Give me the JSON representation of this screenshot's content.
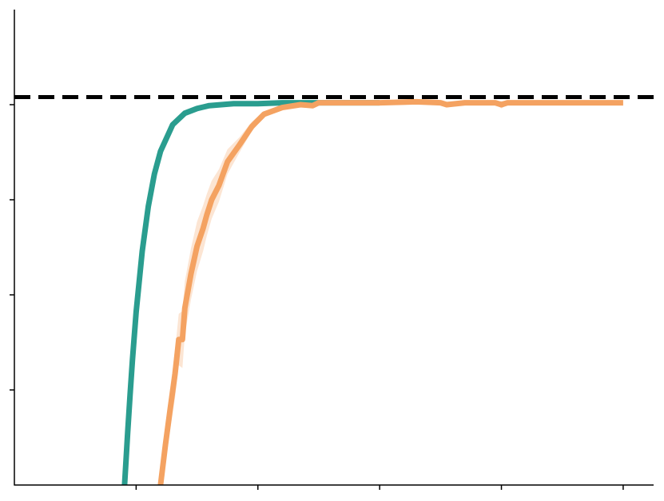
{
  "chart_data": {
    "type": "line",
    "title": "",
    "xlabel": "",
    "ylabel": "",
    "xlim": [
      0,
      5.25
    ],
    "ylim": [
      0,
      5
    ],
    "xticks": [
      1,
      2,
      3,
      4,
      5
    ],
    "yticks": [
      1,
      2,
      3,
      4
    ],
    "grid": false,
    "legend": "none",
    "reference_line": {
      "y": 4.08,
      "style": "dashed",
      "color": "#000000"
    },
    "series": [
      {
        "color": "#2a9d8f",
        "band": false,
        "x": [
          0.905,
          0.93,
          0.95,
          0.97,
          1.0,
          1.05,
          1.1,
          1.15,
          1.2,
          1.3,
          1.4,
          1.5,
          1.6,
          1.7,
          1.8,
          2.0,
          2.2,
          2.5,
          2.8,
          3.0
        ],
        "y": [
          0.0,
          0.54,
          0.95,
          1.32,
          1.82,
          2.46,
          2.93,
          3.27,
          3.51,
          3.79,
          3.91,
          3.96,
          3.99,
          4.0,
          4.01,
          4.01,
          4.02,
          4.02,
          4.02,
          4.02
        ]
      },
      {
        "color": "#f4a261",
        "band": true,
        "x": [
          1.2,
          1.24,
          1.28,
          1.32,
          1.35,
          1.38,
          1.4,
          1.45,
          1.5,
          1.55,
          1.58,
          1.62,
          1.68,
          1.75,
          1.85,
          1.95,
          2.05,
          2.2,
          2.35,
          2.45,
          2.5,
          2.7,
          3.0,
          3.3,
          3.5,
          3.55,
          3.7,
          3.95,
          4.0,
          4.05,
          4.5,
          5.0
        ],
        "y": [
          0.0,
          0.42,
          0.8,
          1.17,
          1.53,
          1.53,
          1.86,
          2.22,
          2.51,
          2.7,
          2.84,
          3.0,
          3.15,
          3.4,
          3.58,
          3.77,
          3.9,
          3.97,
          4.0,
          3.99,
          4.02,
          4.02,
          4.02,
          4.03,
          4.02,
          4.0,
          4.02,
          4.02,
          4.0,
          4.02,
          4.02,
          4.02
        ],
        "band_width": [
          0.0,
          0.18,
          0.22,
          0.25,
          0.27,
          0.3,
          0.28,
          0.27,
          0.26,
          0.24,
          0.22,
          0.2,
          0.17,
          0.13,
          0.08,
          0.05,
          0.03,
          0.02,
          0.02,
          0.02,
          0.01,
          0.01,
          0.01,
          0.01,
          0.01,
          0.03,
          0.02,
          0.01,
          0.04,
          0.02,
          0.01,
          0.01
        ]
      }
    ]
  }
}
